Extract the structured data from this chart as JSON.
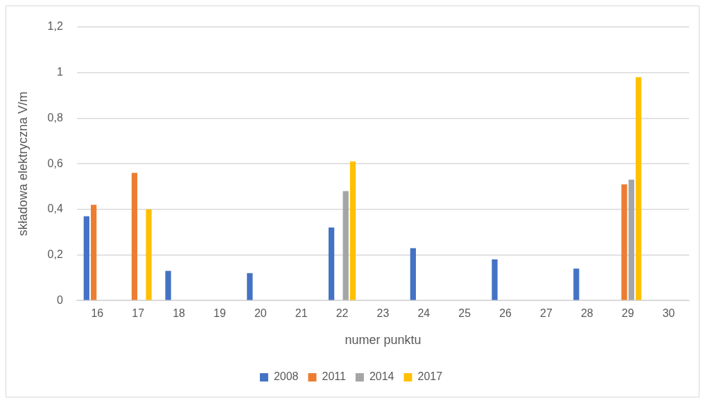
{
  "chart_data": {
    "type": "bar",
    "xlabel": "numer punktu",
    "ylabel": "składowa elektryczna V/m",
    "categories": [
      "16",
      "17",
      "18",
      "19",
      "20",
      "21",
      "22",
      "23",
      "24",
      "25",
      "26",
      "27",
      "28",
      "29",
      "30"
    ],
    "series": [
      {
        "name": "2008",
        "color": "#4472c4",
        "values": [
          0.37,
          null,
          0.13,
          null,
          0.12,
          null,
          0.32,
          null,
          0.23,
          null,
          0.18,
          null,
          0.14,
          null,
          null
        ]
      },
      {
        "name": "2011",
        "color": "#ed7d31",
        "values": [
          0.42,
          0.56,
          null,
          null,
          null,
          null,
          null,
          null,
          null,
          null,
          null,
          null,
          null,
          0.51,
          null
        ]
      },
      {
        "name": "2014",
        "color": "#a5a5a5",
        "values": [
          null,
          null,
          null,
          null,
          null,
          null,
          0.48,
          null,
          null,
          null,
          null,
          null,
          null,
          0.53,
          null
        ]
      },
      {
        "name": "2017",
        "color": "#ffc000",
        "values": [
          null,
          0.4,
          null,
          null,
          null,
          null,
          0.61,
          null,
          null,
          null,
          null,
          null,
          null,
          0.98,
          null
        ]
      }
    ],
    "ylim": [
      0,
      1.2
    ],
    "yticks": [
      0,
      {
        "value": 0.2,
        "label": "0,2"
      },
      {
        "value": 0.4,
        "label": "0,4"
      },
      {
        "value": 0.6,
        "label": "0,6"
      },
      {
        "value": 0.8,
        "label": "0,8"
      },
      1,
      {
        "value": 1.2,
        "label": "1,2"
      }
    ],
    "grid": "y",
    "legend": "bottom"
  }
}
